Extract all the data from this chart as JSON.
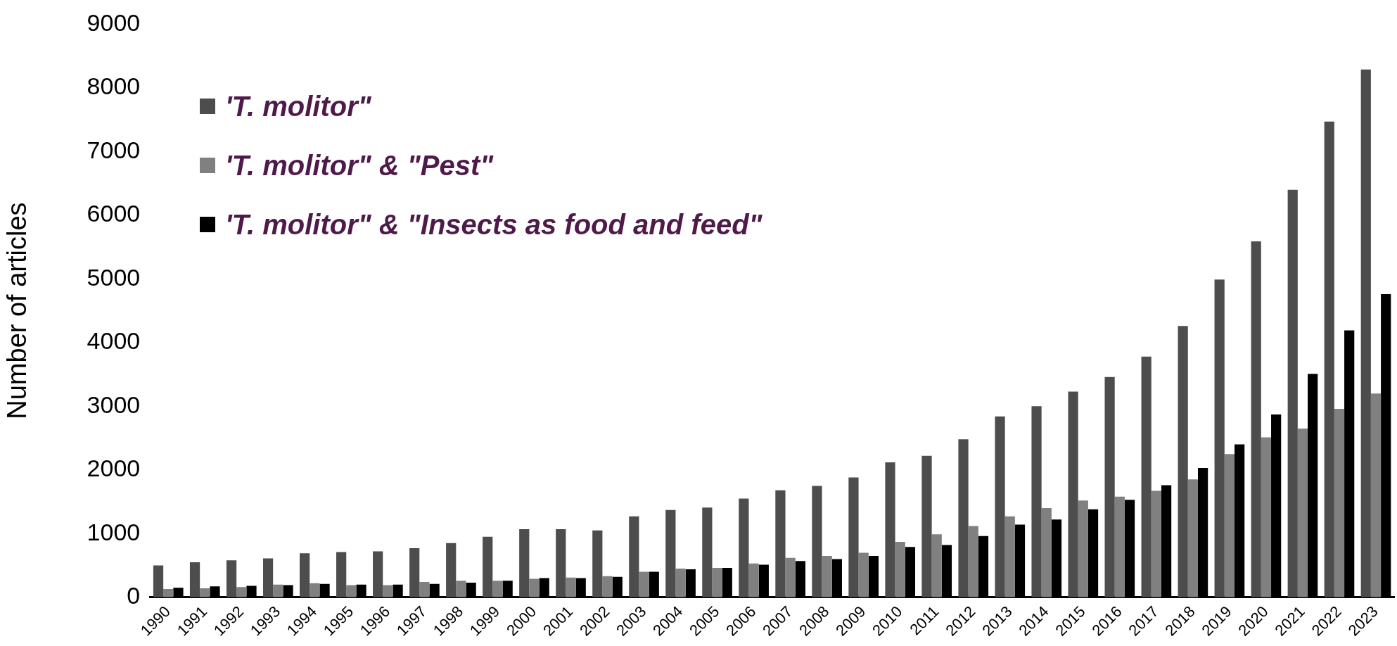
{
  "chart_data": {
    "type": "bar",
    "ylabel": "Number of articles",
    "categories": [
      "1990",
      "1991",
      "1992",
      "1993",
      "1994",
      "1995",
      "1996",
      "1997",
      "1998",
      "1999",
      "2000",
      "2001",
      "2002",
      "2003",
      "2004",
      "2005",
      "2006",
      "2007",
      "2008",
      "2009",
      "2010",
      "2011",
      "2012",
      "2013",
      "2014",
      "2015",
      "2016",
      "2017",
      "2018",
      "2019",
      "2020",
      "2021",
      "2022",
      "2023"
    ],
    "series": [
      {
        "name": "'T. molitor\"",
        "color": "#4d4d4d",
        "values": [
          500,
          550,
          580,
          610,
          690,
          710,
          720,
          770,
          850,
          950,
          1070,
          1070,
          1050,
          1270,
          1370,
          1410,
          1550,
          1680,
          1750,
          1880,
          2120,
          2220,
          2480,
          2840,
          3000,
          3230,
          3460,
          3780,
          4260,
          4990,
          5590,
          6400,
          7470,
          8290
        ]
      },
      {
        "name": "'T. molitor\" & \"Pest\"",
        "color": "#808080",
        "values": [
          130,
          140,
          160,
          200,
          220,
          190,
          190,
          240,
          260,
          260,
          290,
          310,
          330,
          400,
          450,
          460,
          530,
          620,
          650,
          700,
          870,
          990,
          1120,
          1270,
          1400,
          1520,
          1580,
          1670,
          1850,
          2250,
          2510,
          2650,
          2960,
          3200
        ]
      },
      {
        "name": "'T. molitor\" & \"Insects as food and feed\"",
        "color": "#000000",
        "values": [
          150,
          170,
          180,
          190,
          210,
          200,
          200,
          210,
          230,
          260,
          300,
          300,
          320,
          400,
          440,
          460,
          510,
          570,
          600,
          650,
          790,
          820,
          960,
          1140,
          1220,
          1380,
          1530,
          1760,
          2030,
          2400,
          2870,
          3510,
          4190,
          4760
        ]
      }
    ],
    "ylim": [
      0,
      9000
    ],
    "yticks": [
      0,
      1000,
      2000,
      3000,
      4000,
      5000,
      6000,
      7000,
      8000,
      9000
    ],
    "grid": false,
    "legend": "top left"
  }
}
